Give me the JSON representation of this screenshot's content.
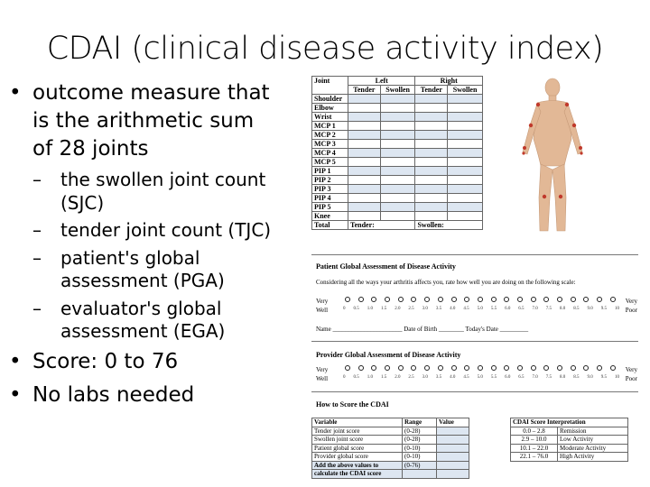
{
  "title": "CDAI (clinical disease activity index)",
  "bullets": {
    "b1_lines": [
      "outcome measure that",
      "is the arithmetic sum",
      "of 28 joints"
    ],
    "sub": [
      {
        "lines": [
          "the swollen joint count",
          "(SJC)"
        ]
      },
      {
        "lines": [
          "tender joint count (TJC)"
        ]
      },
      {
        "lines": [
          "patient's global",
          "assessment (PGA)"
        ]
      },
      {
        "lines": [
          "evaluator's global",
          "assessment (EGA)"
        ]
      }
    ],
    "score": "Score: 0 to 76",
    "labs": "No labs needed",
    "bullet_glyph": "•",
    "dash_glyph": "–"
  },
  "form": {
    "joint_header": {
      "joint": "Joint",
      "left": "Left",
      "right": "Right",
      "tender": "Tender",
      "swollen": "Swollen"
    },
    "joints": [
      "Shoulder",
      "Elbow",
      "Wrist",
      "MCP 1",
      "MCP 2",
      "MCP 3",
      "MCP 4",
      "MCP 5",
      "PIP 1",
      "PIP 2",
      "PIP 3",
      "PIP 4",
      "PIP 5",
      "Knee"
    ],
    "total_row": {
      "label": "Total",
      "tender": "Tender:",
      "swollen": "Swollen:"
    },
    "patient_title": "Patient Global Assessment of Disease Activity",
    "patient_prompt": "Considering all the ways your arthritis affects you, rate how well you are doing on the following scale:",
    "scale_left": [
      "Very",
      "Well"
    ],
    "scale_right": [
      "Very",
      "Poor"
    ],
    "scale_nums": [
      "0",
      "0.5",
      "1.0",
      "1.5",
      "2.0",
      "2.5",
      "3.0",
      "3.5",
      "4.0",
      "4.5",
      "5.0",
      "5.5",
      "6.0",
      "6.5",
      "7.0",
      "7.5",
      "8.0",
      "8.5",
      "9.0",
      "9.5",
      "10"
    ],
    "name_line": "Name ______________________ Date of Birth ________ Today's Date _________",
    "provider_title": "Provider Global Assessment of Disease Activity",
    "how_to_title": "How to Score the CDAI",
    "score_table": {
      "headers": [
        "Variable",
        "Range",
        "Value"
      ],
      "rows": [
        [
          "Tender joint score",
          "(0-28)",
          ""
        ],
        [
          "Swollen joint score",
          "(0-28)",
          ""
        ],
        [
          "Patient global score",
          "(0-10)",
          ""
        ],
        [
          "Provider global score",
          "(0-10)",
          ""
        ],
        [
          "Add the above values to",
          "(0-76)",
          ""
        ],
        [
          "calculate the CDAI score",
          "",
          ""
        ]
      ]
    },
    "interp_table": {
      "header": "CDAI Score Interpretation",
      "rows": [
        [
          "0.0 – 2.8",
          "Remission"
        ],
        [
          "2.9 – 10.0",
          "Low Activity"
        ],
        [
          "10.1 – 22.0",
          "Moderate Activity"
        ],
        [
          "22.1 – 76.0",
          "High Activity"
        ]
      ]
    }
  }
}
